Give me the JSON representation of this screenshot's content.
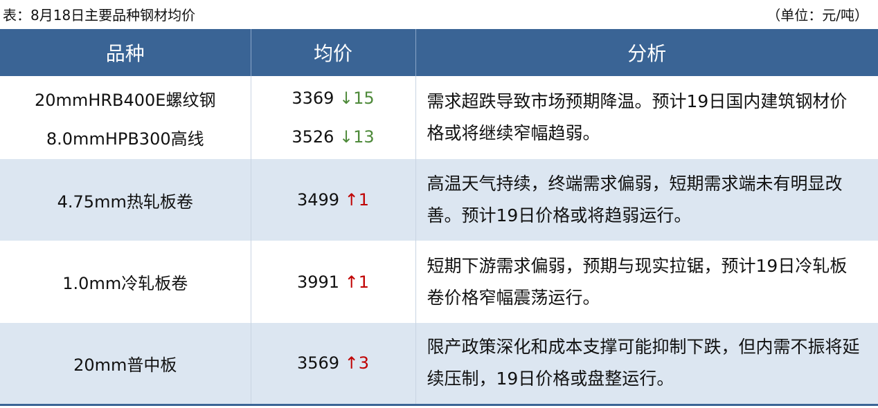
{
  "caption": "表：8月18日主要品种钢材均价",
  "unit": "（单位：元/吨）",
  "headers": [
    "品种",
    "均价",
    "分析"
  ],
  "colors": {
    "header": "#3a6495",
    "down": "#4e8a3a",
    "up": "#c00000",
    "alt_row": "#dce6f1"
  },
  "rows": [
    {
      "items": [
        {
          "name": "20mmHRB400E螺纹钢",
          "price": "3369",
          "arrow": "↓",
          "change": "15",
          "dir": "down"
        },
        {
          "name": "8.0mmHPB300高线",
          "price": "3526",
          "arrow": "↓",
          "change": "13",
          "dir": "down"
        }
      ],
      "analysis": "需求超跌导致市场预期降温。预计19日国内建筑钢材价格或将继续窄幅趋弱。"
    },
    {
      "items": [
        {
          "name": "4.75mm热轧板卷",
          "price": "3499",
          "arrow": "↑",
          "change": "1",
          "dir": "up"
        }
      ],
      "analysis": "高温天气持续，终端需求偏弱，短期需求端未有明显改善。预计19日价格或将趋弱运行。"
    },
    {
      "items": [
        {
          "name": "1.0mm冷轧板卷",
          "price": "3991",
          "arrow": "↑",
          "change": "1",
          "dir": "up"
        }
      ],
      "analysis": "短期下游需求偏弱，预期与现实拉锯，预计19日冷轧板卷价格窄幅震荡运行。"
    },
    {
      "items": [
        {
          "name": "20mm普中板",
          "price": "3569",
          "arrow": "↑",
          "change": "3",
          "dir": "up"
        }
      ],
      "analysis": "限产政策深化和成本支撑可能抑制下跌，但内需不振将延续压制，19日价格或盘整运行。"
    }
  ]
}
